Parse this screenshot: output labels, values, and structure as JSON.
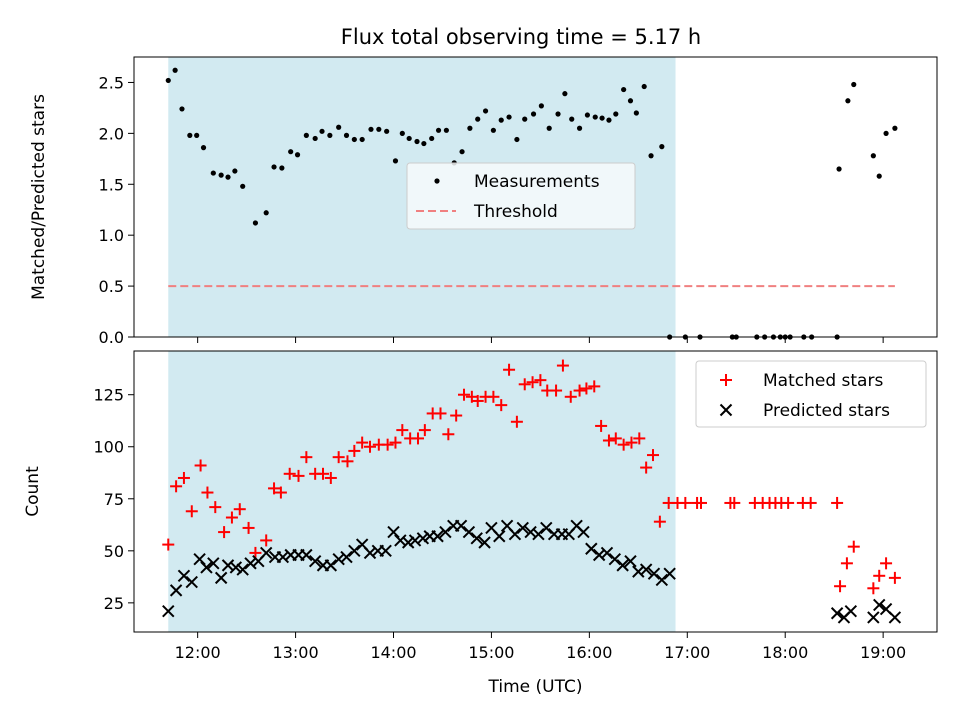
{
  "chart_data": {
    "title": "Flux total observing time = 5.17 h",
    "xlabel": "Time (UTC)",
    "x_unit": "hours (UTC)",
    "xlim": [
      11.35,
      19.55
    ],
    "xticks": [
      12,
      13,
      14,
      15,
      16,
      17,
      18,
      19
    ],
    "xtick_labels": [
      "12:00",
      "13:00",
      "14:00",
      "15:00",
      "16:00",
      "17:00",
      "18:00",
      "19:00"
    ],
    "shaded_region": {
      "x_start": 11.7,
      "x_end": 16.88,
      "color": "#add8e6"
    },
    "panels": [
      {
        "type": "scatter",
        "ylabel": "Matched/Predicted stars",
        "ylim": [
          0,
          2.75
        ],
        "yticks": [
          0.0,
          0.5,
          1.0,
          1.5,
          2.0,
          2.5
        ],
        "ytick_labels": [
          "0.0",
          "0.5",
          "1.0",
          "1.5",
          "2.0",
          "2.5"
        ],
        "legend_position": "center",
        "threshold": {
          "name": "Threshold",
          "value": 0.5,
          "x_start": 11.7,
          "x_end": 19.12,
          "color": "#f08080",
          "style": "dashed"
        },
        "series": [
          {
            "name": "Measurements",
            "color": "#000000",
            "marker": "dot",
            "x": [
              11.7,
              11.77,
              11.84,
              11.92,
              11.99,
              12.06,
              12.16,
              12.24,
              12.31,
              12.38,
              12.46,
              12.59,
              12.7,
              12.78,
              12.86,
              12.95,
              13.02,
              13.11,
              13.2,
              13.27,
              13.35,
              13.44,
              13.52,
              13.6,
              13.68,
              13.77,
              13.85,
              13.93,
              14.02,
              14.09,
              14.16,
              14.24,
              14.31,
              14.39,
              14.46,
              14.54,
              14.62,
              14.7,
              14.78,
              14.86,
              14.94,
              15.02,
              15.1,
              15.18,
              15.26,
              15.34,
              15.43,
              15.51,
              15.59,
              15.68,
              15.75,
              15.82,
              15.9,
              15.98,
              16.06,
              16.13,
              16.2,
              16.27,
              16.35,
              16.42,
              16.48,
              16.56,
              16.63,
              16.74,
              16.82,
              16.98,
              17.13,
              17.46,
              17.5,
              17.71,
              17.79,
              17.88,
              17.95,
              18.0,
              18.05,
              18.19,
              18.27,
              18.53,
              18.55,
              18.64,
              18.7,
              18.9,
              18.96,
              19.03,
              19.12
            ],
            "y": [
              2.52,
              2.62,
              2.24,
              1.98,
              1.98,
              1.86,
              1.61,
              1.59,
              1.57,
              1.63,
              1.48,
              1.12,
              1.22,
              1.67,
              1.66,
              1.82,
              1.79,
              1.98,
              1.95,
              2.02,
              1.98,
              2.06,
              1.98,
              1.94,
              1.94,
              2.04,
              2.04,
              2.02,
              1.73,
              2.0,
              1.95,
              1.92,
              1.9,
              1.95,
              2.03,
              2.03,
              1.71,
              1.82,
              2.05,
              2.14,
              2.22,
              2.03,
              2.13,
              2.16,
              1.94,
              2.14,
              2.19,
              2.27,
              2.05,
              2.19,
              2.39,
              2.14,
              2.05,
              2.18,
              2.16,
              2.15,
              2.13,
              2.19,
              2.43,
              2.32,
              2.2,
              2.46,
              1.78,
              1.87,
              0.0,
              0.0,
              0.0,
              0.0,
              0.0,
              0.0,
              0.0,
              0.0,
              0.0,
              0.0,
              0.0,
              0.0,
              0.0,
              0.0,
              1.65,
              2.32,
              2.48,
              1.78,
              1.58,
              2.0,
              2.05
            ]
          }
        ]
      },
      {
        "type": "scatter",
        "ylabel": "Count",
        "ylim": [
          11,
          146
        ],
        "yticks": [
          25,
          50,
          75,
          100,
          125
        ],
        "ytick_labels": [
          "25",
          "50",
          "75",
          "100",
          "125"
        ],
        "legend_position": "upper right",
        "series": [
          {
            "name": "Matched stars",
            "color": "#ff0000",
            "marker": "plus",
            "x": [
              11.7,
              11.78,
              11.86,
              11.94,
              12.03,
              12.1,
              12.18,
              12.27,
              12.35,
              12.43,
              12.52,
              12.59,
              12.7,
              12.78,
              12.85,
              12.94,
              13.03,
              13.11,
              13.2,
              13.28,
              13.36,
              13.44,
              13.53,
              13.6,
              13.68,
              13.76,
              13.85,
              13.94,
              14.02,
              14.09,
              14.17,
              14.25,
              14.32,
              14.4,
              14.48,
              14.56,
              14.64,
              14.72,
              14.8,
              14.86,
              14.94,
              15.02,
              15.1,
              15.18,
              15.26,
              15.34,
              15.42,
              15.5,
              15.57,
              15.66,
              15.73,
              15.81,
              15.9,
              15.97,
              16.05,
              16.12,
              16.2,
              16.27,
              16.35,
              16.43,
              16.51,
              16.58,
              16.65,
              16.72,
              16.81,
              16.9,
              16.98,
              17.1,
              17.14,
              17.44,
              17.48,
              17.69,
              17.77,
              17.84,
              17.9,
              17.96,
              18.03,
              18.18,
              18.26,
              18.53,
              18.56,
              18.63,
              18.7,
              18.9,
              18.96,
              19.03,
              19.12
            ],
            "y": [
              53,
              81,
              85,
              69,
              91,
              78,
              71,
              59,
              66,
              70,
              61,
              49,
              55,
              80,
              78,
              87,
              86,
              95,
              87,
              87,
              85,
              95,
              93,
              98,
              102,
              100,
              101,
              101,
              102,
              108,
              104,
              104,
              108,
              116,
              116,
              106,
              115,
              125,
              124,
              122,
              124,
              124,
              120,
              137,
              112,
              130,
              131,
              132,
              127,
              127,
              139,
              124,
              127,
              128,
              129,
              110,
              103,
              104,
              101,
              102,
              104,
              90,
              96,
              64,
              73,
              73,
              73,
              73,
              73,
              73,
              73,
              73,
              73,
              73,
              73,
              73,
              73,
              73,
              73,
              73,
              33,
              44,
              52,
              32,
              38,
              44,
              37
            ]
          },
          {
            "name": "Predicted stars",
            "color": "#000000",
            "marker": "x",
            "x": [
              11.7,
              11.78,
              11.86,
              11.94,
              12.02,
              12.09,
              12.16,
              12.24,
              12.31,
              12.39,
              12.46,
              12.54,
              12.62,
              12.7,
              12.79,
              12.87,
              12.95,
              13.03,
              13.11,
              13.2,
              13.28,
              13.36,
              13.44,
              13.52,
              13.6,
              13.68,
              13.76,
              13.84,
              13.92,
              14.0,
              14.07,
              14.15,
              14.22,
              14.3,
              14.37,
              14.45,
              14.53,
              14.61,
              14.69,
              14.77,
              14.85,
              14.93,
              15.0,
              15.08,
              15.16,
              15.24,
              15.32,
              15.4,
              15.48,
              15.56,
              15.64,
              15.72,
              15.79,
              15.87,
              15.94,
              16.02,
              16.1,
              16.18,
              16.26,
              16.34,
              16.42,
              16.5,
              16.58,
              16.66,
              16.74,
              16.82,
              18.53,
              18.6,
              18.67,
              18.9,
              18.96,
              19.03,
              19.12
            ],
            "y": [
              21,
              31,
              38,
              35,
              46,
              42,
              44,
              37,
              43,
              42,
              41,
              44,
              45,
              49,
              47,
              47,
              48,
              48,
              48,
              45,
              43,
              43,
              46,
              47,
              50,
              53,
              49,
              50,
              50,
              59,
              55,
              54,
              55,
              56,
              57,
              57,
              59,
              62,
              62,
              59,
              56,
              54,
              61,
              57,
              62,
              58,
              61,
              59,
              58,
              61,
              58,
              58,
              58,
              62,
              59,
              51,
              48,
              49,
              46,
              43,
              45,
              40,
              41,
              39,
              36,
              39,
              20,
              18,
              21,
              18,
              24,
              22,
              18
            ]
          }
        ]
      }
    ]
  }
}
